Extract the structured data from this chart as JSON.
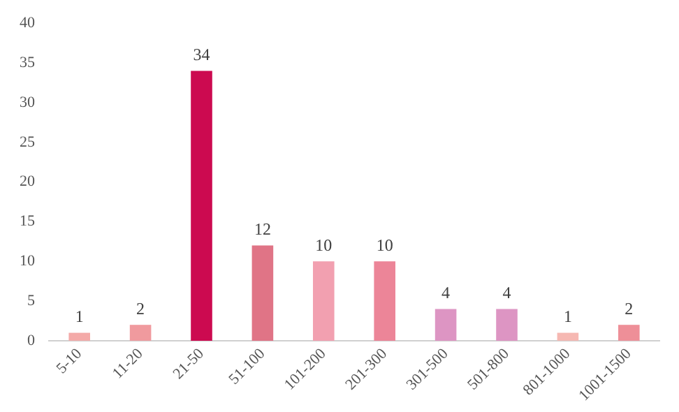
{
  "chart_data": {
    "type": "bar",
    "categories": [
      "5-10",
      "11-20",
      "21-50",
      "51-100",
      "101-200",
      "201-300",
      "301-500",
      "501-800",
      "801-1000",
      "1001-1500"
    ],
    "values": [
      1,
      2,
      34,
      12,
      10,
      10,
      4,
      4,
      1,
      2
    ],
    "colors": [
      "#f4aaa8",
      "#f09a9e",
      "#cc0a50",
      "#e07486",
      "#f2a0b0",
      "#ec8598",
      "#dd95c3",
      "#dd95c3",
      "#f6b8b2",
      "#ee8f98"
    ],
    "ylim": [
      0,
      40
    ],
    "yticks": [
      0,
      5,
      10,
      15,
      20,
      25,
      30,
      35,
      40
    ],
    "grid": false,
    "data_labels": true
  }
}
